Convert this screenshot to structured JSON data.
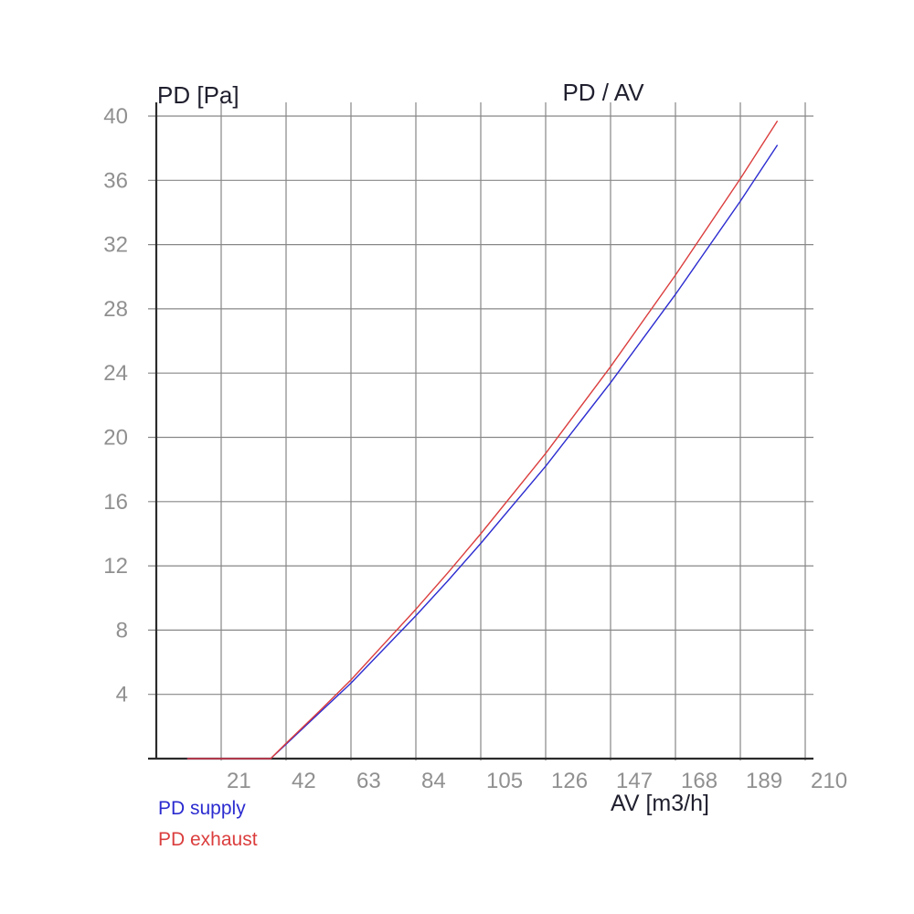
{
  "chart": {
    "title": "PD / AV",
    "y_axis_title": "PD [Pa]",
    "x_axis_title": "AV [m3/h]",
    "legend": [
      {
        "label": "PD supply",
        "color": "#2b2bd0"
      },
      {
        "label": "PD exhaust",
        "color": "#db3d3d"
      }
    ]
  },
  "chart_data": {
    "type": "line",
    "title": "PD / AV",
    "xlabel": "AV [m3/h]",
    "ylabel": "PD [Pa]",
    "xlim": [
      0,
      210
    ],
    "ylim": [
      0,
      40
    ],
    "x_ticks": [
      21,
      42,
      63,
      84,
      105,
      126,
      147,
      168,
      189,
      210
    ],
    "y_ticks": [
      4,
      8,
      12,
      16,
      20,
      24,
      28,
      32,
      36,
      40
    ],
    "grid": true,
    "grid_color": "#878787",
    "axis_color": "#2b2b2b",
    "tick_label_color": "#909090",
    "series": [
      {
        "name": "PD supply",
        "color": "#2b2bd0",
        "points": [
          [
            10,
            0
          ],
          [
            37,
            0
          ],
          [
            42,
            0.9
          ],
          [
            52.5,
            2.8
          ],
          [
            63,
            4.7
          ],
          [
            73.5,
            6.8
          ],
          [
            84,
            8.9
          ],
          [
            94.5,
            11.1
          ],
          [
            105,
            13.4
          ],
          [
            126,
            18.2
          ],
          [
            147,
            23.4
          ],
          [
            168,
            28.9
          ],
          [
            189,
            34.7
          ],
          [
            201,
            38.2
          ]
        ]
      },
      {
        "name": "PD exhaust",
        "color": "#db3d3d",
        "points": [
          [
            10,
            0
          ],
          [
            37,
            0
          ],
          [
            42,
            0.95
          ],
          [
            52.5,
            2.9
          ],
          [
            63,
            4.9
          ],
          [
            73.5,
            7.1
          ],
          [
            84,
            9.3
          ],
          [
            94.5,
            11.6
          ],
          [
            105,
            14.0
          ],
          [
            126,
            19.0
          ],
          [
            147,
            24.4
          ],
          [
            168,
            30.1
          ],
          [
            189,
            36.1
          ],
          [
            201,
            39.7
          ]
        ]
      }
    ]
  }
}
